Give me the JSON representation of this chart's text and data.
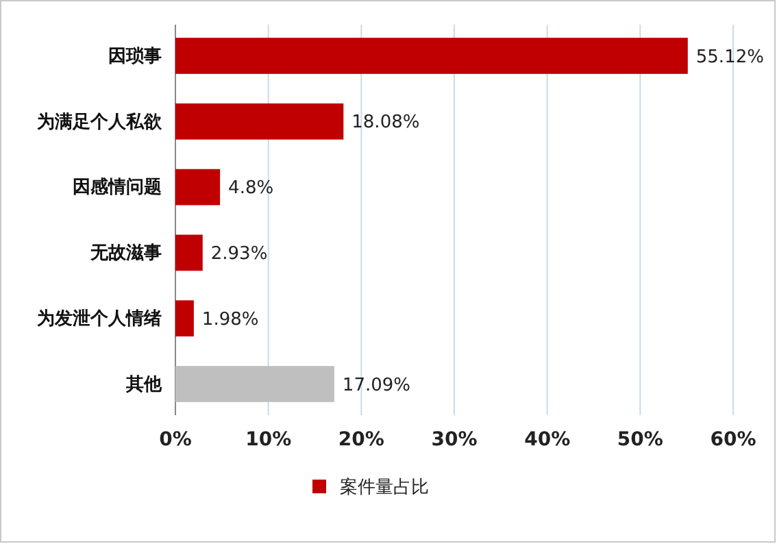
{
  "chart_data": {
    "type": "bar",
    "orientation": "horizontal",
    "categories": [
      "因琐事",
      "为满足个人私欲",
      "因感情问题",
      "无故滋事",
      "为发泄个人情绪",
      "其他"
    ],
    "series": [
      {
        "name": "案件量占比",
        "color": "#c00000",
        "colors": [
          "#c00000",
          "#c00000",
          "#c00000",
          "#c00000",
          "#c00000",
          "#bfbfbf"
        ],
        "values": [
          55.12,
          18.08,
          4.8,
          2.93,
          1.98,
          17.09
        ],
        "value_labels": [
          "55.12%",
          "18.08%",
          "4.8%",
          "2.93%",
          "1.98%",
          "17.09%"
        ]
      }
    ],
    "xlim": [
      0,
      60
    ],
    "xticks": [
      {
        "value": 0,
        "label": "0%"
      },
      {
        "value": 10,
        "label": "10%"
      },
      {
        "value": 20,
        "label": "20%"
      },
      {
        "value": 30,
        "label": "30%"
      },
      {
        "value": 40,
        "label": "40%"
      },
      {
        "value": 50,
        "label": "50%"
      },
      {
        "value": 60,
        "label": "60%"
      }
    ],
    "grid": "x",
    "legend": "bottom"
  }
}
